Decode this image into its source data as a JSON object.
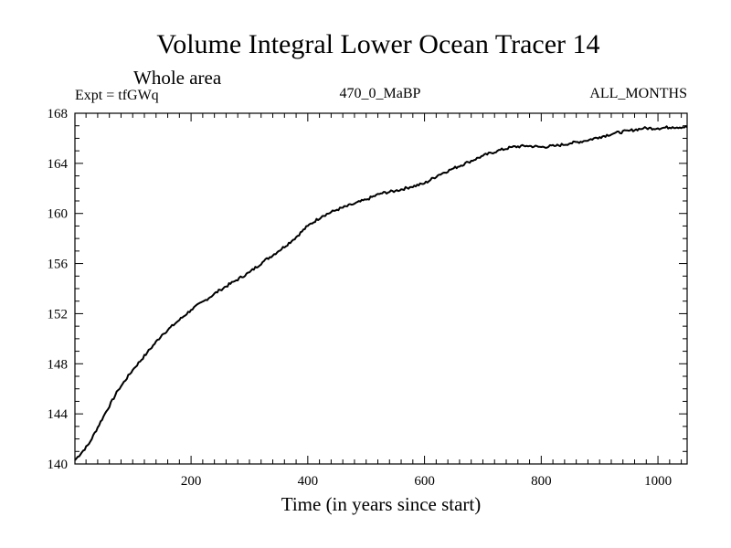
{
  "chart_data": {
    "type": "line",
    "title": "Volume Integral Lower Ocean Tracer 14",
    "subtitle": "Whole area",
    "header_left": "Expt = tfGWq",
    "header_center": "470_0_MaBP",
    "header_right": "ALL_MONTHS",
    "xlabel": "Time (in years since start)",
    "ylabel": "",
    "xlim": [
      1,
      1050
    ],
    "ylim": [
      140,
      168
    ],
    "xticks": [
      200,
      400,
      600,
      800,
      1000
    ],
    "yticks": [
      140,
      144,
      148,
      152,
      156,
      160,
      164,
      168
    ],
    "grid": false,
    "series": [
      {
        "name": "Lower Ocean Tracer 14",
        "color": "#000000",
        "x": [
          1,
          25,
          50,
          75,
          100,
          125,
          150,
          175,
          200,
          225,
          250,
          275,
          300,
          325,
          350,
          375,
          400,
          425,
          450,
          475,
          500,
          525,
          550,
          575,
          600,
          625,
          650,
          675,
          700,
          725,
          750,
          775,
          800,
          825,
          850,
          875,
          900,
          925,
          950,
          975,
          1000,
          1025,
          1050
        ],
        "y": [
          140.3,
          141.6,
          143.8,
          145.9,
          147.5,
          148.9,
          150.3,
          151.3,
          152.3,
          153.1,
          153.9,
          154.6,
          155.3,
          156.2,
          157.0,
          157.9,
          159.0,
          159.8,
          160.3,
          160.7,
          161.1,
          161.6,
          161.8,
          162.1,
          162.4,
          163.1,
          163.6,
          164.1,
          164.6,
          165.0,
          165.3,
          165.4,
          165.3,
          165.4,
          165.6,
          165.8,
          166.1,
          166.4,
          166.6,
          166.8,
          166.8,
          166.9,
          166.9
        ]
      }
    ]
  }
}
